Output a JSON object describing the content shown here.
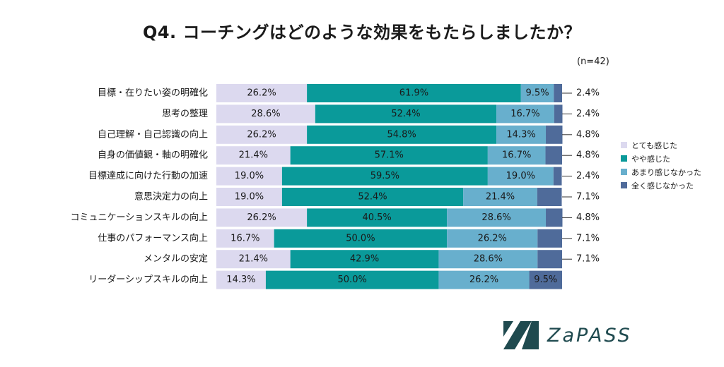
{
  "title": "Q4. コーチングはどのような効果をもたらしましたか？",
  "sample_size": "(n=42)",
  "colors": {
    "very": "#dcd9ef",
    "somewhat": "#0a9a9a",
    "not_much": "#68afcd",
    "not_at_all": "#4f6b9a"
  },
  "chart_data": {
    "type": "bar",
    "orientation": "horizontal",
    "stacked": "100%",
    "categories": [
      "目標・在りたい姿の明確化",
      "思考の整理",
      "自己理解・自己認識の向上",
      "自身の価値観・軸の明確化",
      "目標達成に向けた行動の加速",
      "意思決定力の向上",
      "コミュニケーションスキルの向上",
      "仕事のパフォーマンス向上",
      "メンタルの安定",
      "リーダーシップスキルの向上"
    ],
    "series": [
      {
        "name": "とても感じた",
        "values": [
          26.2,
          28.6,
          26.2,
          21.4,
          19.0,
          19.0,
          26.2,
          16.7,
          21.4,
          14.3
        ],
        "labels": [
          "26.2%",
          "28.6%",
          "26.2%",
          "21.4%",
          "19.0%",
          "19.0%",
          "26.2%",
          "16.7%",
          "21.4%",
          "14.3%"
        ]
      },
      {
        "name": "やや感じた",
        "values": [
          61.9,
          52.4,
          54.8,
          57.1,
          59.5,
          52.4,
          40.5,
          50.0,
          42.9,
          50.0
        ],
        "labels": [
          "61.9%",
          "52.4%",
          "54.8%",
          "57.1%",
          "59.5%",
          "52.4%",
          "40.5%",
          "50.0%",
          "42.9%",
          "50.0%"
        ]
      },
      {
        "name": "あまり感じなかった",
        "values": [
          9.5,
          16.7,
          14.3,
          16.7,
          19.0,
          21.4,
          28.6,
          26.2,
          28.6,
          26.2
        ],
        "labels": [
          "9.5%",
          "16.7%",
          "14.3%",
          "16.7%",
          "19.0%",
          "21.4%",
          "28.6%",
          "26.2%",
          "28.6%",
          "26.2%"
        ]
      },
      {
        "name": "全く感じなかった",
        "values": [
          2.4,
          2.4,
          4.8,
          4.8,
          2.4,
          7.1,
          4.8,
          7.1,
          7.1,
          9.5
        ],
        "labels": [
          "2.4%",
          "2.4%",
          "4.8%",
          "4.8%",
          "2.4%",
          "7.1%",
          "4.8%",
          "7.1%",
          "7.1%",
          "9.5%"
        ]
      }
    ],
    "legend_position": "right",
    "xlim": [
      0,
      100
    ]
  },
  "logo": {
    "text": "ZaPASS"
  }
}
